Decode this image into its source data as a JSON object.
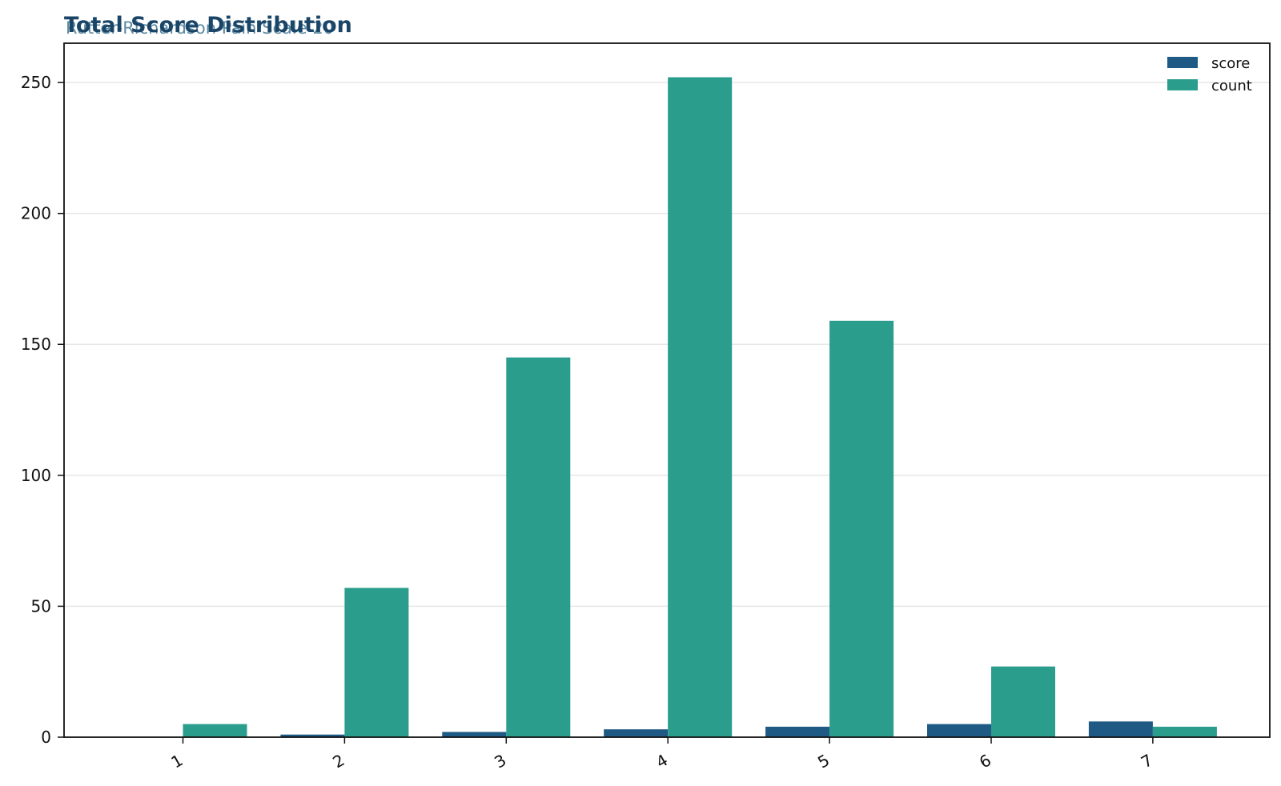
{
  "chart_data": {
    "type": "bar",
    "title": "Total Score Distribution",
    "subtitle": "Rutter-Richardson Pain Scale 20",
    "xlabel": "",
    "ylabel": "",
    "categories": [
      "1",
      "2",
      "3",
      "4",
      "5",
      "6",
      "7"
    ],
    "series": [
      {
        "name": "score",
        "color": "#1f5a85",
        "values": [
          0,
          1,
          2,
          3,
          4,
          5,
          6
        ]
      },
      {
        "name": "count",
        "color": "#2a9d8c",
        "values": [
          5,
          57,
          145,
          252,
          159,
          27,
          4
        ]
      }
    ],
    "ylim": [
      0,
      265
    ],
    "yticks": [
      0,
      50,
      100,
      150,
      200,
      250
    ],
    "grid": "horizontal",
    "legend_position": "top-right"
  }
}
